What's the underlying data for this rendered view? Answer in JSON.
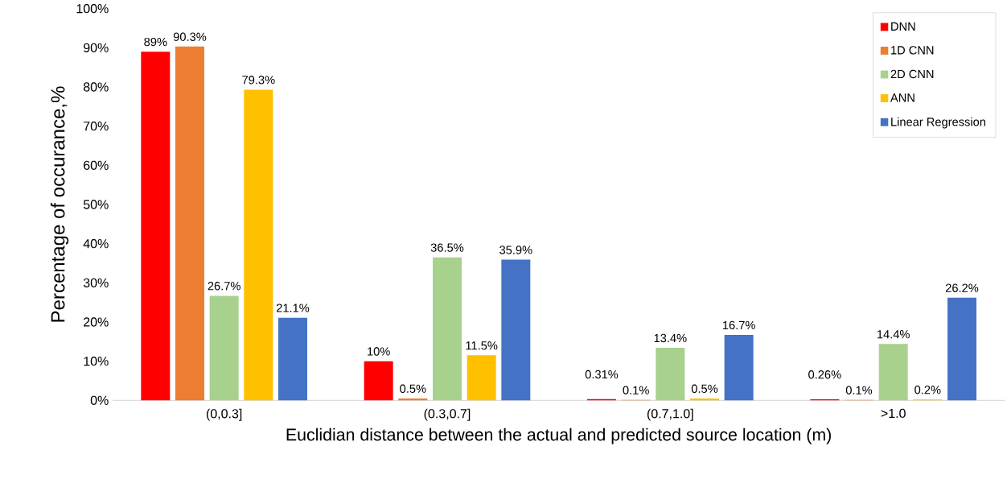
{
  "chart_data": {
    "type": "bar",
    "xlabel": "Euclidian distance between the  actual and predicted source location (m)",
    "ylabel": "Percentage of occurance,%",
    "categories": [
      "(0,0.3]",
      "(0.3,0.7]",
      "(0.7,1.0]",
      ">1.0"
    ],
    "series": [
      {
        "name": "DNN",
        "color": "#ff0000",
        "values": [
          89,
          10,
          0.31,
          0.26
        ],
        "value_labels": [
          "89%",
          "10%",
          "0.31%",
          "0.26%"
        ]
      },
      {
        "name": "1D CNN",
        "color": "#ed7d31",
        "values": [
          90.3,
          0.5,
          0.1,
          0.1
        ],
        "value_labels": [
          "90.3%",
          "0.5%",
          "0.1%",
          "0.1%"
        ]
      },
      {
        "name": "2D CNN",
        "color": "#a9d18e",
        "values": [
          26.7,
          36.5,
          13.4,
          14.4
        ],
        "value_labels": [
          "26.7%",
          "36.5%",
          "13.4%",
          "14.4%"
        ]
      },
      {
        "name": "ANN",
        "color": "#ffc000",
        "values": [
          79.3,
          11.5,
          0.5,
          0.2
        ],
        "value_labels": [
          "79.3%",
          "11.5%",
          "0.5%",
          "0.2%"
        ]
      },
      {
        "name": "Linear Regression",
        "color": "#4472c4",
        "values": [
          21.1,
          35.9,
          16.7,
          26.2
        ],
        "value_labels": [
          "21.1%",
          "35.9%",
          "16.7%",
          "26.2%"
        ]
      }
    ],
    "ylim": [
      0,
      100
    ],
    "yticks": [
      {
        "value": 0,
        "label": "0%"
      },
      {
        "value": 10,
        "label": "10%"
      },
      {
        "value": 20,
        "label": "20%"
      },
      {
        "value": 30,
        "label": "30%"
      },
      {
        "value": 40,
        "label": "40%"
      },
      {
        "value": 50,
        "label": "50%"
      },
      {
        "value": 60,
        "label": "60%"
      },
      {
        "value": 70,
        "label": "70%"
      },
      {
        "value": 80,
        "label": "80%"
      },
      {
        "value": 90,
        "label": "90%"
      },
      {
        "value": 100,
        "label": "100%"
      }
    ],
    "grid": false,
    "legend": "top right"
  }
}
